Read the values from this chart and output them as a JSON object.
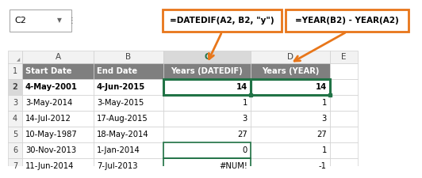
{
  "cell_ref": "C2",
  "formula_c": "=DATEDIF(A2, B2, \"y\")",
  "formula_d": "=YEAR(B2) - YEAR(A2)",
  "col_headers": [
    "A",
    "B",
    "C",
    "D",
    "E"
  ],
  "row_headers": [
    "1",
    "2",
    "3",
    "4",
    "5",
    "6",
    "7"
  ],
  "header_row": [
    "Start Date",
    "End Date",
    "Years (DATEDIF)",
    "Years (YEAR)"
  ],
  "data_rows": [
    [
      "4-May-2001",
      "4-Jun-2015",
      "14",
      "14"
    ],
    [
      "3-May-2014",
      "3-May-2015",
      "1",
      "1"
    ],
    [
      "14-Jul-2012",
      "17-Aug-2015",
      "3",
      "3"
    ],
    [
      "10-May-1987",
      "18-May-2014",
      "27",
      "27"
    ],
    [
      "30-Nov-2013",
      "1-Jan-2014",
      "0",
      "1"
    ],
    [
      "11-Jun-2014",
      "7-Jul-2013",
      "#NUM!",
      "-1"
    ]
  ],
  "header_bg": "#7F7F7F",
  "header_fg": "#FFFFFF",
  "col_c_fg": "#217346",
  "col_c_header_bg": "#D9D9D9",
  "col_header_bg": "#F2F2F2",
  "selected_border": "#217346",
  "formula_box_color": "#E8761A",
  "arrow_color": "#E8761A",
  "grid_color": "#D0D0D0",
  "bg_color": "#FFFFFF",
  "row2_num_bg": "#D9D9D9",
  "note_row6_c_border": "#217346",
  "note_row7_c_border": "#217346"
}
